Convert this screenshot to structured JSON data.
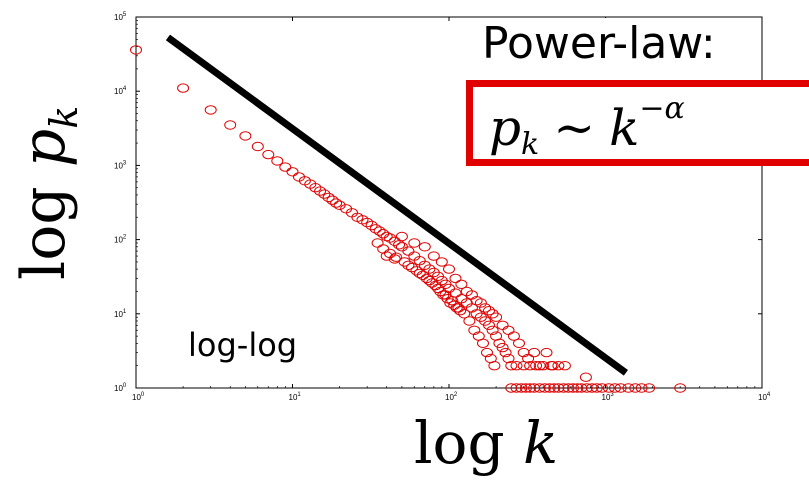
{
  "chart_data": {
    "type": "scatter",
    "xscale": "log",
    "yscale": "log",
    "xlim": [
      1,
      10000
    ],
    "ylim": [
      1,
      100000
    ],
    "x_ticks": [
      {
        "base": "10",
        "exp": "0"
      },
      {
        "base": "10",
        "exp": "1"
      },
      {
        "base": "10",
        "exp": "2"
      },
      {
        "base": "10",
        "exp": "3"
      },
      {
        "base": "10",
        "exp": "4"
      }
    ],
    "y_ticks": [
      {
        "base": "10",
        "exp": "0"
      },
      {
        "base": "10",
        "exp": "1"
      },
      {
        "base": "10",
        "exp": "2"
      },
      {
        "base": "10",
        "exp": "3"
      },
      {
        "base": "10",
        "exp": "4"
      },
      {
        "base": "10",
        "exp": "5"
      }
    ],
    "xlabel": {
      "prefix": "log",
      "var": "k"
    },
    "ylabel": {
      "prefix": "log",
      "var": "p",
      "sub": "k"
    },
    "annotation": "log-log",
    "marker_color": "#e00000",
    "fit_line_color": "#000000",
    "fit_line": [
      {
        "x": 1.6,
        "y": 53000
      },
      {
        "x": 1350,
        "y": 1.6
      }
    ],
    "series": [
      {
        "points": [
          [
            1,
            36000
          ],
          [
            2,
            11000
          ],
          [
            3,
            5600
          ],
          [
            4,
            3500
          ],
          [
            5,
            2500
          ],
          [
            6,
            1800
          ],
          [
            7,
            1400
          ],
          [
            8,
            1150
          ],
          [
            9,
            950
          ],
          [
            10,
            820
          ],
          [
            11,
            700
          ],
          [
            12,
            620
          ],
          [
            13,
            560
          ],
          [
            14,
            500
          ],
          [
            15,
            450
          ],
          [
            16,
            410
          ],
          [
            17,
            370
          ],
          [
            18,
            340
          ],
          [
            19,
            310
          ],
          [
            20,
            290
          ],
          [
            22,
            260
          ],
          [
            24,
            230
          ],
          [
            26,
            200
          ],
          [
            28,
            185
          ],
          [
            30,
            170
          ],
          [
            32,
            155
          ],
          [
            34,
            140
          ],
          [
            36,
            130
          ],
          [
            38,
            120
          ],
          [
            40,
            110
          ],
          [
            42,
            105
          ],
          [
            45,
            95
          ],
          [
            48,
            85
          ],
          [
            50,
            80
          ],
          [
            55,
            70
          ],
          [
            60,
            60
          ],
          [
            65,
            52
          ],
          [
            70,
            45
          ],
          [
            75,
            40
          ],
          [
            80,
            36
          ],
          [
            85,
            32
          ],
          [
            90,
            28
          ],
          [
            95,
            25
          ],
          [
            100,
            22
          ],
          [
            110,
            19
          ],
          [
            120,
            16
          ],
          [
            130,
            14
          ],
          [
            140,
            12
          ],
          [
            150,
            10
          ],
          [
            160,
            9
          ],
          [
            170,
            8
          ],
          [
            180,
            7
          ],
          [
            190,
            6
          ],
          [
            200,
            5
          ],
          [
            210,
            4
          ],
          [
            220,
            3.5
          ],
          [
            230,
            3
          ],
          [
            240,
            2.5
          ],
          [
            250,
            2
          ],
          [
            270,
            2
          ],
          [
            300,
            2
          ],
          [
            330,
            2
          ],
          [
            360,
            2
          ],
          [
            400,
            2
          ],
          [
            450,
            2
          ],
          [
            500,
            2
          ],
          [
            550,
            2
          ],
          [
            750,
            1.4
          ],
          [
            50,
            110
          ],
          [
            60,
            90
          ],
          [
            70,
            80
          ],
          [
            80,
            60
          ],
          [
            90,
            50
          ],
          [
            100,
            40
          ],
          [
            110,
            30
          ],
          [
            120,
            25
          ],
          [
            130,
            20
          ],
          [
            140,
            18
          ],
          [
            150,
            15
          ],
          [
            160,
            14
          ],
          [
            170,
            12
          ],
          [
            180,
            11
          ],
          [
            190,
            10
          ],
          [
            200,
            9
          ],
          [
            220,
            7
          ],
          [
            240,
            6
          ],
          [
            260,
            5
          ],
          [
            280,
            4
          ],
          [
            300,
            3
          ],
          [
            320,
            2.5
          ],
          [
            350,
            3
          ],
          [
            380,
            2
          ],
          [
            420,
            3
          ],
          [
            460,
            2
          ],
          [
            40,
            60
          ],
          [
            45,
            55
          ],
          [
            55,
            45
          ],
          [
            65,
            35
          ],
          [
            75,
            28
          ],
          [
            85,
            22
          ],
          [
            95,
            18
          ],
          [
            105,
            15
          ],
          [
            115,
            12
          ],
          [
            125,
            10
          ],
          [
            135,
            8
          ],
          [
            145,
            6
          ],
          [
            155,
            5
          ],
          [
            165,
            4
          ],
          [
            175,
            3
          ],
          [
            185,
            2.5
          ],
          [
            195,
            2
          ],
          [
            35,
            90
          ],
          [
            38,
            75
          ],
          [
            42,
            65
          ],
          [
            46,
            58
          ],
          [
            52,
            50
          ],
          [
            58,
            42
          ],
          [
            62,
            38
          ],
          [
            68,
            33
          ],
          [
            72,
            30
          ],
          [
            78,
            26
          ],
          [
            82,
            24
          ],
          [
            88,
            20
          ],
          [
            92,
            18
          ],
          [
            98,
            16
          ],
          [
            102,
            14
          ],
          [
            108,
            13
          ],
          [
            112,
            12
          ],
          [
            118,
            11
          ],
          [
            250,
            1
          ],
          [
            270,
            1
          ],
          [
            290,
            1
          ],
          [
            310,
            1
          ],
          [
            330,
            1
          ],
          [
            350,
            1
          ],
          [
            380,
            1
          ],
          [
            410,
            1
          ],
          [
            440,
            1
          ],
          [
            470,
            1
          ],
          [
            500,
            1
          ],
          [
            540,
            1
          ],
          [
            580,
            1
          ],
          [
            620,
            1
          ],
          [
            660,
            1
          ],
          [
            700,
            1
          ],
          [
            760,
            1
          ],
          [
            820,
            1
          ],
          [
            880,
            1
          ],
          [
            950,
            1
          ],
          [
            1050,
            1
          ],
          [
            1150,
            1
          ],
          [
            1250,
            1
          ],
          [
            1400,
            1
          ],
          [
            1550,
            1
          ],
          [
            1700,
            1
          ],
          [
            1900,
            1
          ],
          [
            3000,
            1
          ]
        ]
      }
    ]
  },
  "power_law": {
    "title": "Power-law:",
    "formula": {
      "lhs": "p",
      "lhs_sub": "k",
      "op": "~",
      "rhs": "k",
      "rhs_sup": "−α"
    },
    "box_color": "#e00000"
  }
}
